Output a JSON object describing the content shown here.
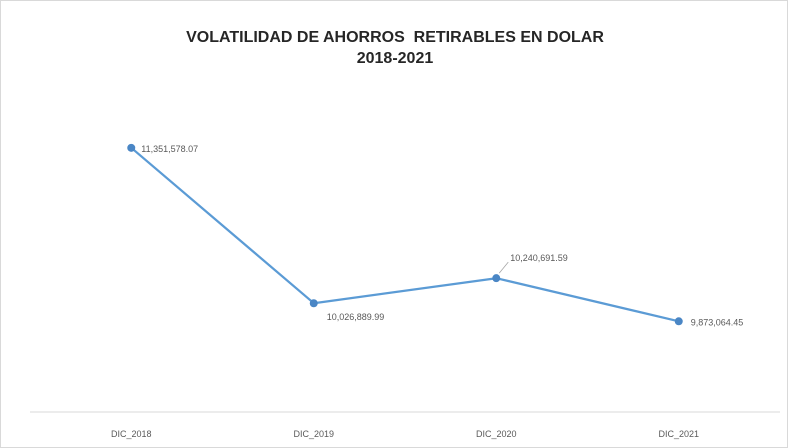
{
  "chart_data": {
    "type": "line",
    "title_line1": "VOLATILIDAD DE AHORROS  RETIRABLES EN DOLAR",
    "title_line2": "2018-2021",
    "categories": [
      "DIC_2018",
      "DIC_2019",
      "DIC_2020",
      "DIC_2021"
    ],
    "values": [
      11351578.07,
      10026889.99,
      10240691.59,
      9873064.45
    ],
    "data_labels": [
      "11,351,578.07",
      "10,026,889.99",
      "10,240,691.59",
      "9,873,064.45"
    ],
    "ylim": [
      9100000,
      12100000
    ],
    "xlabel": "",
    "ylabel": "",
    "grid": false,
    "legend": "none",
    "line_color": "#5b9bd5",
    "marker_color": "#4a86c5",
    "axis_color": "#d9d9d9",
    "label_color": "#595959"
  }
}
